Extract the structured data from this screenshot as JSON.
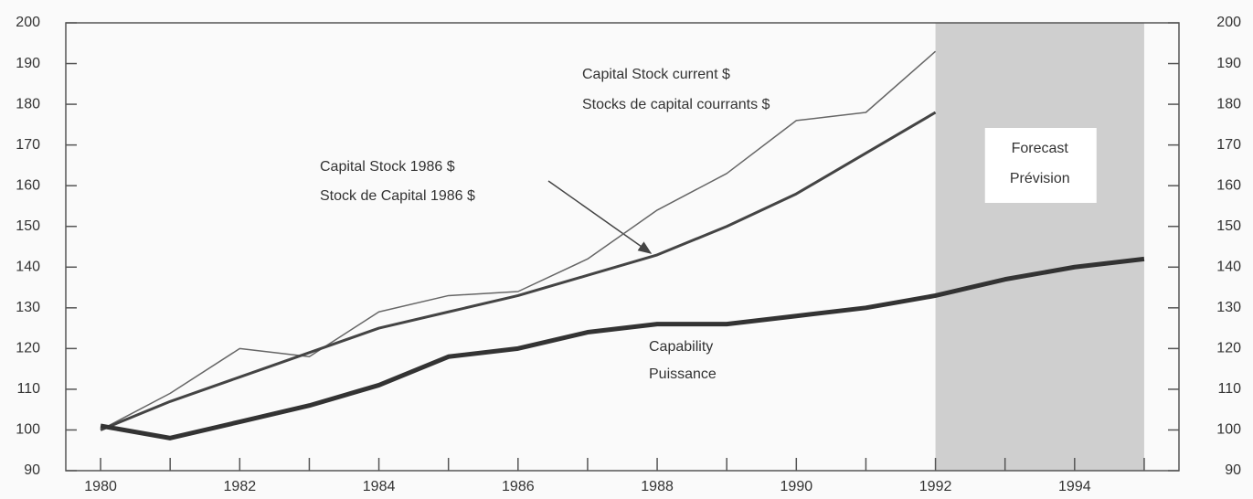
{
  "chart_data": {
    "type": "line",
    "x": [
      1980,
      1981,
      1982,
      1983,
      1984,
      1985,
      1986,
      1987,
      1988,
      1989,
      1990,
      1991,
      1992,
      1993,
      1994,
      1995
    ],
    "series": [
      {
        "name": "Capital Stock current $",
        "name_fr": "Stocks de capital courrants $",
        "color": "#666666",
        "width": 1.5,
        "values": [
          100,
          109,
          120,
          118,
          129,
          133,
          134,
          142,
          154,
          163,
          176,
          178,
          193,
          null,
          null,
          null
        ]
      },
      {
        "name": "Capital Stock 1986 $",
        "name_fr": "Stock de Capital 1986 $",
        "color": "#444444",
        "width": 3,
        "values": [
          100,
          107,
          113,
          119,
          125,
          129,
          133,
          138,
          143,
          150,
          158,
          168,
          178,
          null,
          null,
          null
        ]
      },
      {
        "name": "Capability",
        "name_fr": "Puissance",
        "color": "#333333",
        "width": 5,
        "values": [
          101,
          98,
          102,
          106,
          111,
          118,
          120,
          124,
          126,
          126,
          128,
          130,
          133,
          137,
          140,
          142
        ]
      }
    ],
    "forecast": {
      "x": [
        1992,
        1995
      ],
      "label": "Forecast",
      "label_fr": "Prévision",
      "color": "#cfcfcf"
    },
    "xlim": [
      1979.5,
      1995.5
    ],
    "xticks": [
      1980,
      1982,
      1984,
      1986,
      1988,
      1990,
      1992,
      1994
    ],
    "xminorticks": [
      1981,
      1983,
      1985,
      1987,
      1989,
      1991,
      1993,
      1995
    ],
    "ylim": [
      90,
      200
    ],
    "yticks": [
      90,
      100,
      110,
      120,
      130,
      140,
      150,
      160,
      170,
      180,
      190,
      200
    ],
    "y2lim": [
      90,
      200
    ],
    "y2ticks": [
      90,
      100,
      110,
      120,
      130,
      140,
      150,
      160,
      170,
      180,
      190,
      200
    ]
  }
}
